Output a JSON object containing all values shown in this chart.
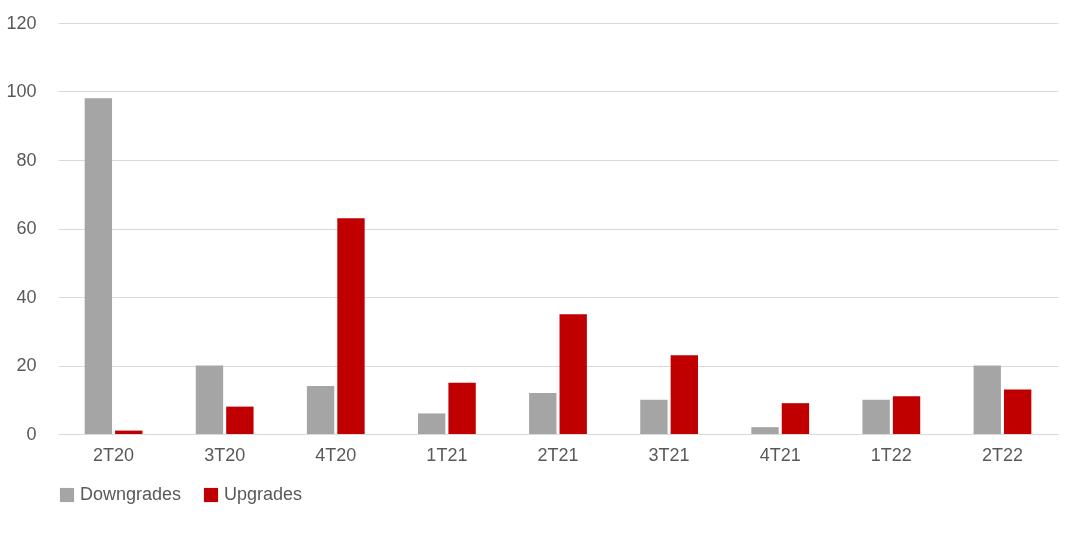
{
  "chart_data": {
    "type": "bar",
    "categories": [
      "2T20",
      "3T20",
      "4T20",
      "1T21",
      "2T21",
      "3T21",
      "4T21",
      "1T22",
      "2T22"
    ],
    "series": [
      {
        "name": "Downgrades",
        "color": "#a5a5a5",
        "values": [
          98,
          20,
          14,
          6,
          12,
          10,
          2,
          10,
          20
        ]
      },
      {
        "name": "Upgrades",
        "color": "#c00000",
        "values": [
          1,
          8,
          63,
          15,
          35,
          23,
          9,
          11,
          13
        ]
      }
    ],
    "ylim": [
      0,
      120
    ],
    "yticks": [
      0,
      20,
      40,
      60,
      80,
      100,
      120
    ],
    "grid": "y",
    "legend": "bottom"
  }
}
